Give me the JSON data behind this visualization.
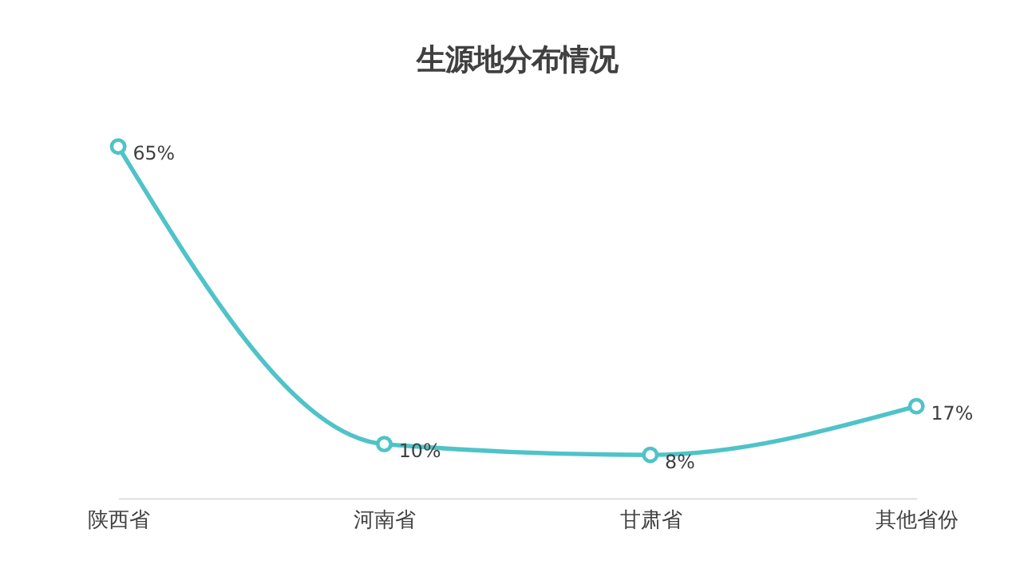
{
  "chart_data": {
    "type": "line",
    "title": "生源地分布情况",
    "categories": [
      "陕西省",
      "河南省",
      "甘肃省",
      "其他省份"
    ],
    "series": [
      {
        "color": "#4fc3c8",
        "values": [
          65,
          10,
          8,
          17
        ],
        "value_labels": [
          "65%",
          "10%",
          "8%",
          "17%"
        ]
      }
    ],
    "marker": "circle",
    "line_style": "solid",
    "grid": false,
    "tick_labels": "x"
  }
}
